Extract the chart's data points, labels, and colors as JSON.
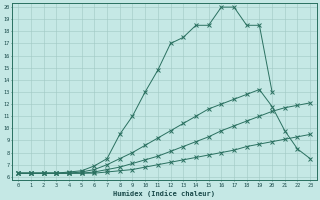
{
  "xlabel": "Humidex (Indice chaleur)",
  "background_color": "#c5e8e5",
  "grid_color": "#a0c8c4",
  "line_color": "#2a7060",
  "xlim": [
    -0.5,
    23.5
  ],
  "ylim": [
    5.7,
    20.3
  ],
  "xticks": [
    0,
    1,
    2,
    3,
    4,
    5,
    6,
    7,
    8,
    9,
    10,
    11,
    12,
    13,
    14,
    15,
    16,
    17,
    18,
    19,
    20,
    21,
    22,
    23
  ],
  "yticks": [
    6,
    7,
    8,
    9,
    10,
    11,
    12,
    13,
    14,
    15,
    16,
    17,
    18,
    19,
    20
  ],
  "series": [
    {
      "x": [
        0,
        1,
        2,
        3,
        4,
        5,
        6,
        7,
        8,
        9,
        10,
        11,
        12,
        13,
        14,
        15,
        16,
        17,
        18,
        19,
        20,
        21,
        22,
        23
      ],
      "y": [
        6.3,
        6.3,
        6.3,
        6.3,
        6.3,
        6.3,
        6.3,
        6.4,
        6.5,
        6.6,
        6.8,
        7.0,
        7.2,
        7.4,
        7.6,
        7.8,
        8.0,
        8.2,
        8.5,
        8.7,
        8.9,
        9.1,
        9.3,
        9.5
      ]
    },
    {
      "x": [
        0,
        1,
        2,
        3,
        4,
        5,
        6,
        7,
        8,
        9,
        10,
        11,
        12,
        13,
        14,
        15,
        16,
        17,
        18,
        19,
        20,
        21,
        22,
        23
      ],
      "y": [
        6.3,
        6.3,
        6.3,
        6.3,
        6.3,
        6.3,
        6.4,
        6.6,
        6.8,
        7.1,
        7.4,
        7.7,
        8.1,
        8.5,
        8.9,
        9.3,
        9.8,
        10.2,
        10.6,
        11.0,
        11.4,
        11.7,
        11.9,
        12.1
      ]
    },
    {
      "x": [
        0,
        1,
        2,
        3,
        4,
        5,
        6,
        7,
        8,
        9,
        10,
        11,
        12,
        13,
        14,
        15,
        16,
        17,
        18,
        19,
        20,
        21,
        22,
        23
      ],
      "y": [
        6.3,
        6.3,
        6.3,
        6.3,
        6.3,
        6.4,
        6.6,
        7.0,
        7.5,
        8.0,
        8.6,
        9.2,
        9.8,
        10.4,
        11.0,
        11.6,
        12.0,
        12.4,
        12.8,
        13.2,
        11.8,
        9.8,
        8.3,
        7.5
      ]
    },
    {
      "x": [
        0,
        1,
        2,
        3,
        4,
        5,
        6,
        7,
        8,
        9,
        10,
        11,
        12,
        13,
        14,
        15,
        16,
        17,
        18,
        19,
        20,
        21,
        22
      ],
      "y": [
        6.3,
        6.3,
        6.3,
        6.3,
        6.4,
        6.5,
        6.9,
        7.5,
        9.5,
        11.0,
        13.0,
        14.8,
        17.0,
        17.5,
        18.5,
        18.5,
        20.0,
        20.0,
        18.5,
        18.5,
        13.0,
        null,
        null
      ]
    }
  ]
}
